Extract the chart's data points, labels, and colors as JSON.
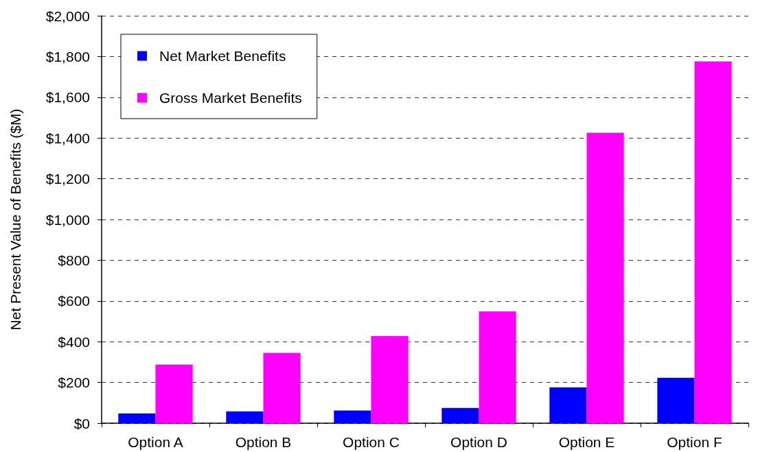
{
  "chart_data": {
    "type": "bar",
    "ylabel": "Net Present Value of Benefits ($M)",
    "categories": [
      "Option A",
      "Option B",
      "Option C",
      "Option D",
      "Option E",
      "Option F"
    ],
    "series": [
      {
        "name": "Net Market Benefits",
        "color": "#0000ff",
        "values": [
          48,
          58,
          62,
          75,
          176,
          223
        ]
      },
      {
        "name": "Gross Market Benefits",
        "color": "#ff00ff",
        "values": [
          288,
          345,
          428,
          549,
          1426,
          1776
        ]
      }
    ],
    "ylim": [
      0,
      2000
    ],
    "yticks": [
      {
        "value": 0,
        "label": "$0"
      },
      {
        "value": 200,
        "label": "$200"
      },
      {
        "value": 400,
        "label": "$400"
      },
      {
        "value": 600,
        "label": "$600"
      },
      {
        "value": 800,
        "label": "$800"
      },
      {
        "value": 1000,
        "label": "$1,000"
      },
      {
        "value": 1200,
        "label": "$1,200"
      },
      {
        "value": 1400,
        "label": "$1,400"
      },
      {
        "value": 1600,
        "label": "$1,600"
      },
      {
        "value": 1800,
        "label": "$1,800"
      },
      {
        "value": 2000,
        "label": "$2,000"
      }
    ],
    "grid": "y",
    "legend": "top left"
  }
}
